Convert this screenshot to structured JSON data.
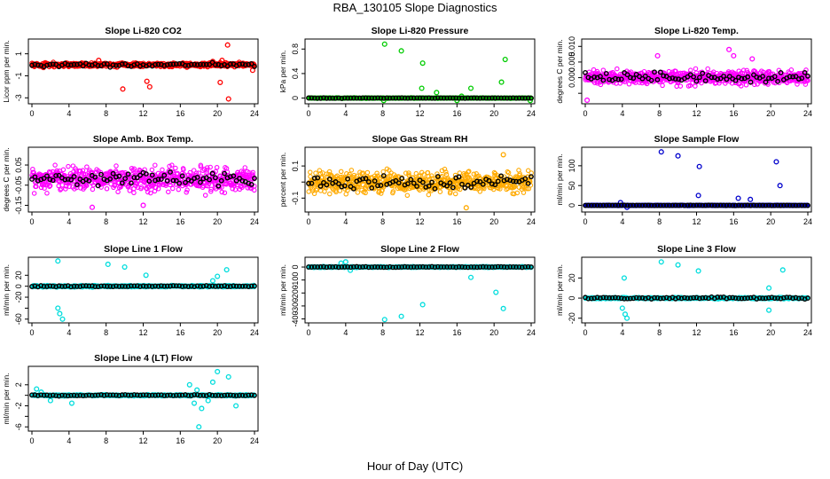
{
  "figure": {
    "title": "RBA_130105  Slope Diagnostics",
    "xlabel": "Hour of Day (UTC)"
  },
  "chart_data": [
    {
      "type": "scatter",
      "title": "Slope Li-820 CO2",
      "ylabel": "Licor ppm per min.",
      "xlim": [
        0,
        24
      ],
      "xticks": [
        0,
        4,
        8,
        12,
        16,
        20,
        24
      ],
      "yticks": [
        -3,
        -1,
        1
      ],
      "ylim": [
        -3.3,
        2.1
      ],
      "colors": {
        "cloud": "#ff0000",
        "mean": "#000000"
      },
      "band": {
        "center": 0.0,
        "half": 0.35
      },
      "meanSpread": 0.25,
      "outliers": [
        [
          9.8,
          -2.2
        ],
        [
          12.4,
          -1.5
        ],
        [
          12.7,
          -2.0
        ],
        [
          20.3,
          -1.6
        ],
        [
          21.1,
          1.8
        ],
        [
          21.2,
          -3.1
        ],
        [
          20.5,
          0.4
        ],
        [
          19.5,
          0.3
        ],
        [
          7.2,
          0.4
        ],
        [
          23.8,
          -0.5
        ]
      ]
    },
    {
      "type": "scatter",
      "title": "Slope Li-820 Pressure",
      "ylabel": "kPa per min.",
      "xlim": [
        0,
        24
      ],
      "xticks": [
        0,
        4,
        8,
        12,
        16,
        20,
        24
      ],
      "yticks": [
        0.0,
        0.4,
        0.8
      ],
      "ylim": [
        -0.05,
        0.92
      ],
      "colors": {
        "cloud": "#00cc00",
        "mean": "#000000"
      },
      "band": {
        "center": 0.0,
        "half": 0.012
      },
      "meanSpread": 0.006,
      "outliers": [
        [
          8.2,
          0.88
        ],
        [
          10.0,
          0.77
        ],
        [
          12.3,
          0.57
        ],
        [
          12.2,
          0.16
        ],
        [
          13.8,
          0.09
        ],
        [
          16.5,
          0.03
        ],
        [
          17.5,
          0.16
        ],
        [
          20.8,
          0.26
        ],
        [
          21.2,
          0.63
        ],
        [
          23.9,
          -0.04
        ],
        [
          16.0,
          -0.04
        ],
        [
          8.1,
          -0.04
        ]
      ]
    },
    {
      "type": "scatter",
      "title": "Slope Li-820 Temp.",
      "ylabel": "degrees C per min.",
      "xlim": [
        0,
        24
      ],
      "xticks": [
        0,
        4,
        8,
        12,
        16,
        20,
        24
      ],
      "yticks": [
        -0.005,
        0.0,
        0.005,
        0.01
      ],
      "yticklabels": [
        "",
        "0.000",
        "0.005",
        "0.010"
      ],
      "ylim": [
        -0.0075,
        0.0115
      ],
      "colors": {
        "cloud": "#ff00ff",
        "mean": "#000000"
      },
      "band": {
        "center": 0.0,
        "half": 0.0042
      },
      "meanSpread": 0.0025,
      "outliers": [
        [
          0.2,
          -0.0072
        ],
        [
          7.8,
          0.007
        ],
        [
          15.5,
          0.009
        ],
        [
          16.0,
          0.007
        ],
        [
          18.0,
          0.006
        ]
      ]
    },
    {
      "type": "scatter",
      "title": "Slope Amb. Box Temp.",
      "ylabel": "degrees C per min.",
      "xlim": [
        0,
        24
      ],
      "xticks": [
        0,
        4,
        8,
        12,
        16,
        20,
        24
      ],
      "yticks": [
        -0.15,
        -0.05,
        0.05
      ],
      "yticklabels": [
        "-0.15",
        "-0.05",
        "0.05"
      ],
      "ylim": [
        -0.17,
        0.125
      ],
      "colors": {
        "cloud": "#ff00ff",
        "mean": "#000000"
      },
      "band": {
        "center": -0.02,
        "half": 0.11
      },
      "meanSpread": 0.05,
      "outliers": [
        [
          6.5,
          -0.16
        ],
        [
          12.0,
          -0.15
        ]
      ]
    },
    {
      "type": "scatter",
      "title": "Slope Gas Stream RH",
      "ylabel": "percent per min.",
      "xlim": [
        0,
        24
      ],
      "xticks": [
        0,
        4,
        8,
        12,
        16,
        20,
        24
      ],
      "yticks": [
        -0.1,
        0.0,
        0.1
      ],
      "yticklabels": [
        "-0.1",
        "",
        "0.1"
      ],
      "ylim": [
        -0.17,
        0.2
      ],
      "colors": {
        "cloud": "#ffaa00",
        "mean": "#000000"
      },
      "band": {
        "center": 0.0,
        "half": 0.12
      },
      "meanSpread": 0.07,
      "outliers": [
        [
          17.0,
          -0.16
        ],
        [
          21.0,
          0.17
        ]
      ]
    },
    {
      "type": "scatter",
      "title": "Slope Sample Flow",
      "ylabel": "ml/min per min.",
      "xlim": [
        0,
        24
      ],
      "xticks": [
        0,
        4,
        8,
        12,
        16,
        20,
        24
      ],
      "yticks": [
        0,
        50,
        100
      ],
      "ylim": [
        -10,
        140
      ],
      "colors": {
        "cloud": "#0000cc",
        "mean": "#000000"
      },
      "band": {
        "center": 0.0,
        "half": 1.5
      },
      "meanSpread": 0.8,
      "outliers": [
        [
          8.2,
          135
        ],
        [
          10.0,
          125
        ],
        [
          12.3,
          98
        ],
        [
          12.2,
          25
        ],
        [
          16.5,
          18
        ],
        [
          17.8,
          15
        ],
        [
          20.6,
          110
        ],
        [
          21.0,
          50
        ],
        [
          4.5,
          -5
        ],
        [
          3.8,
          7
        ]
      ]
    },
    {
      "type": "scatter",
      "title": "Slope Line 1 Flow",
      "ylabel": "ml/min per min.",
      "xlim": [
        0,
        24
      ],
      "xticks": [
        0,
        4,
        8,
        12,
        16,
        20,
        24
      ],
      "yticks": [
        -60,
        -40,
        -20,
        0,
        20
      ],
      "yticklabels": [
        "-60",
        "",
        "-20",
        "0",
        "20"
      ],
      "ylim": [
        -62,
        48
      ],
      "colors": {
        "cloud": "#00dddd",
        "mean": "#000000"
      },
      "band": {
        "center": 0.0,
        "half": 3
      },
      "meanSpread": 1.5,
      "outliers": [
        [
          2.8,
          46
        ],
        [
          8.2,
          40
        ],
        [
          10.0,
          35
        ],
        [
          12.3,
          20
        ],
        [
          2.8,
          -40
        ],
        [
          3.0,
          -50
        ],
        [
          3.3,
          -60
        ],
        [
          20.0,
          18
        ],
        [
          21.0,
          30
        ],
        [
          19.5,
          10
        ]
      ]
    },
    {
      "type": "scatter",
      "title": "Slope Line 2 Flow",
      "ylabel": "ml/min per min.",
      "xlim": [
        0,
        24
      ],
      "xticks": [
        0,
        4,
        8,
        12,
        16,
        20,
        24
      ],
      "yticks": [
        -400,
        -300,
        -200,
        -100,
        0
      ],
      "ylim": [
        -410,
        55
      ],
      "colors": {
        "cloud": "#00dddd",
        "mean": "#000000"
      },
      "band": {
        "center": 0.0,
        "half": 8
      },
      "meanSpread": 4,
      "outliers": [
        [
          8.2,
          -405
        ],
        [
          10.0,
          -380
        ],
        [
          12.3,
          -290
        ],
        [
          17.5,
          -80
        ],
        [
          20.2,
          -195
        ],
        [
          21.0,
          -320
        ],
        [
          4.0,
          40
        ],
        [
          3.5,
          30
        ],
        [
          4.5,
          -25
        ]
      ]
    },
    {
      "type": "scatter",
      "title": "Slope Line 3 Flow",
      "ylabel": "ml/min per min.",
      "xlim": [
        0,
        24
      ],
      "xticks": [
        0,
        4,
        8,
        12,
        16,
        20,
        24
      ],
      "yticks": [
        -20,
        0,
        20
      ],
      "ylim": [
        -22,
        38
      ],
      "colors": {
        "cloud": "#00dddd",
        "mean": "#000000"
      },
      "band": {
        "center": 0.0,
        "half": 1.5
      },
      "meanSpread": 1.5,
      "outliers": [
        [
          8.2,
          36
        ],
        [
          10.0,
          33
        ],
        [
          12.2,
          27
        ],
        [
          4.2,
          20
        ],
        [
          4.0,
          -10
        ],
        [
          4.3,
          -16
        ],
        [
          4.5,
          -20
        ],
        [
          21.3,
          28
        ],
        [
          19.8,
          10
        ],
        [
          19.8,
          -12
        ]
      ]
    },
    {
      "type": "scatter",
      "title": "Slope Line 4 (LT) Flow",
      "ylabel": "ml/min per min.",
      "xlim": [
        0,
        24
      ],
      "xticks": [
        0,
        4,
        8,
        12,
        16,
        20,
        24
      ],
      "yticks": [
        -6,
        -4,
        -2,
        0,
        2
      ],
      "yticklabels": [
        "-6",
        "",
        "-2",
        "",
        "2"
      ],
      "ylim": [
        -6.3,
        5.0
      ],
      "colors": {
        "cloud": "#00dddd",
        "mean": "#000000"
      },
      "band": {
        "center": 0.0,
        "half": 0.25
      },
      "meanSpread": 0.2,
      "outliers": [
        [
          0.5,
          1.2
        ],
        [
          1.0,
          0.6
        ],
        [
          2.0,
          -1.0
        ],
        [
          4.3,
          -1.5
        ],
        [
          17.0,
          2.0
        ],
        [
          17.5,
          -1.5
        ],
        [
          18.0,
          -6.0
        ],
        [
          18.3,
          -2.5
        ],
        [
          19.0,
          -1.0
        ],
        [
          19.5,
          2.5
        ],
        [
          20.0,
          4.5
        ],
        [
          21.2,
          3.5
        ],
        [
          22.0,
          -2.0
        ],
        [
          17.8,
          1.0
        ]
      ]
    }
  ]
}
